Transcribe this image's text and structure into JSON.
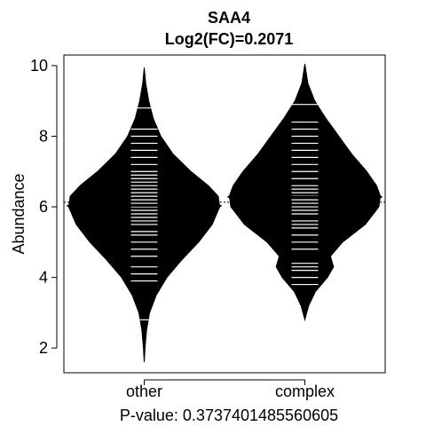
{
  "chart_data": {
    "type": "beanplot",
    "title": "SAA4",
    "subtitle": "Log2(FC)=0.2071",
    "xlabel": "P-value: 0.3737401485560605",
    "ylabel": "Abundance",
    "ylim": [
      1.3,
      10.3
    ],
    "yticks": [
      2,
      4,
      6,
      8,
      10
    ],
    "categories": [
      "other",
      "complex"
    ],
    "overall_mean": 6.13,
    "grid": false,
    "beans": [
      {
        "name": "other",
        "mean": 6.03,
        "range": [
          1.6,
          9.95
        ],
        "density": [
          [
            1.6,
            0.0
          ],
          [
            2.0,
            0.01
          ],
          [
            2.5,
            0.03
          ],
          [
            3.0,
            0.07
          ],
          [
            3.5,
            0.16
          ],
          [
            4.0,
            0.3
          ],
          [
            4.5,
            0.5
          ],
          [
            5.0,
            0.72
          ],
          [
            5.5,
            0.9
          ],
          [
            6.0,
            1.0
          ],
          [
            6.3,
            0.98
          ],
          [
            6.6,
            0.85
          ],
          [
            7.0,
            0.62
          ],
          [
            7.5,
            0.38
          ],
          [
            8.0,
            0.22
          ],
          [
            8.5,
            0.12
          ],
          [
            9.0,
            0.06
          ],
          [
            9.5,
            0.02
          ],
          [
            9.95,
            0.0
          ]
        ],
        "points": [
          2.8,
          3.9,
          4.1,
          4.3,
          4.6,
          4.8,
          5.0,
          5.2,
          5.3,
          5.5,
          5.6,
          5.7,
          5.8,
          5.9,
          6.0,
          6.1,
          6.2,
          6.3,
          6.4,
          6.5,
          6.6,
          6.7,
          6.8,
          6.9,
          7.0,
          7.2,
          7.4,
          7.6,
          7.8,
          8.0,
          8.2,
          8.8
        ]
      },
      {
        "name": "complex",
        "mean": 6.28,
        "range": [
          2.8,
          10.05
        ],
        "density": [
          [
            2.8,
            0.0
          ],
          [
            3.2,
            0.05
          ],
          [
            3.6,
            0.14
          ],
          [
            4.0,
            0.3
          ],
          [
            4.3,
            0.38
          ],
          [
            4.6,
            0.34
          ],
          [
            5.0,
            0.5
          ],
          [
            5.5,
            0.8
          ],
          [
            6.0,
            0.98
          ],
          [
            6.3,
            1.0
          ],
          [
            6.6,
            0.95
          ],
          [
            7.0,
            0.82
          ],
          [
            7.5,
            0.62
          ],
          [
            8.0,
            0.45
          ],
          [
            8.5,
            0.28
          ],
          [
            9.0,
            0.13
          ],
          [
            9.5,
            0.04
          ],
          [
            10.05,
            0.0
          ]
        ],
        "points": [
          3.8,
          4.0,
          4.2,
          4.3,
          4.4,
          4.8,
          5.0,
          5.2,
          5.4,
          5.5,
          5.6,
          5.8,
          5.9,
          6.0,
          6.1,
          6.2,
          6.3,
          6.4,
          6.5,
          6.6,
          6.8,
          7.0,
          7.2,
          7.4,
          7.6,
          7.8,
          8.0,
          8.2,
          8.4,
          8.9
        ]
      }
    ]
  }
}
